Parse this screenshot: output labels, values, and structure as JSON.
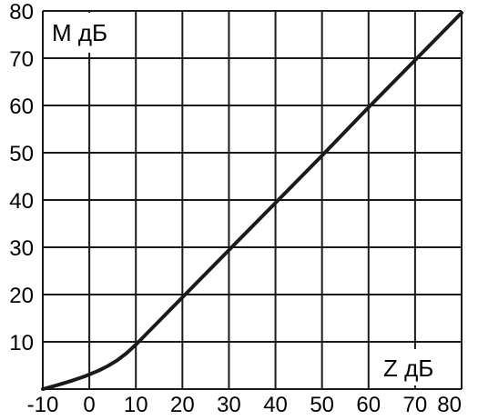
{
  "chart_data": {
    "type": "line",
    "title": "",
    "ylabel": "M дБ",
    "xlabel": "Z дБ",
    "xlim": [
      -10,
      80
    ],
    "ylim": [
      0,
      80
    ],
    "grid": true,
    "x_ticks": [
      "-10",
      "0",
      "10",
      "20",
      "30",
      "40",
      "50",
      "60",
      "70",
      "80"
    ],
    "y_ticks": [
      "10",
      "20",
      "30",
      "40",
      "50",
      "60",
      "70",
      "80"
    ],
    "series": [
      {
        "x": [
          -10,
          -7,
          -4,
          -1,
          2,
          4,
          6,
          8,
          10,
          20,
          30,
          40,
          50,
          60,
          70,
          80
        ],
        "values": [
          0,
          0.8,
          1.7,
          2.7,
          3.9,
          4.9,
          6.1,
          7.6,
          9.4,
          19.4,
          29.4,
          39.4,
          49.4,
          59.6,
          69.6,
          79.6
        ]
      }
    ],
    "colors": {
      "line": "#1a1a1a",
      "grid": "#1a1a1a",
      "background": "#ffffff"
    }
  }
}
